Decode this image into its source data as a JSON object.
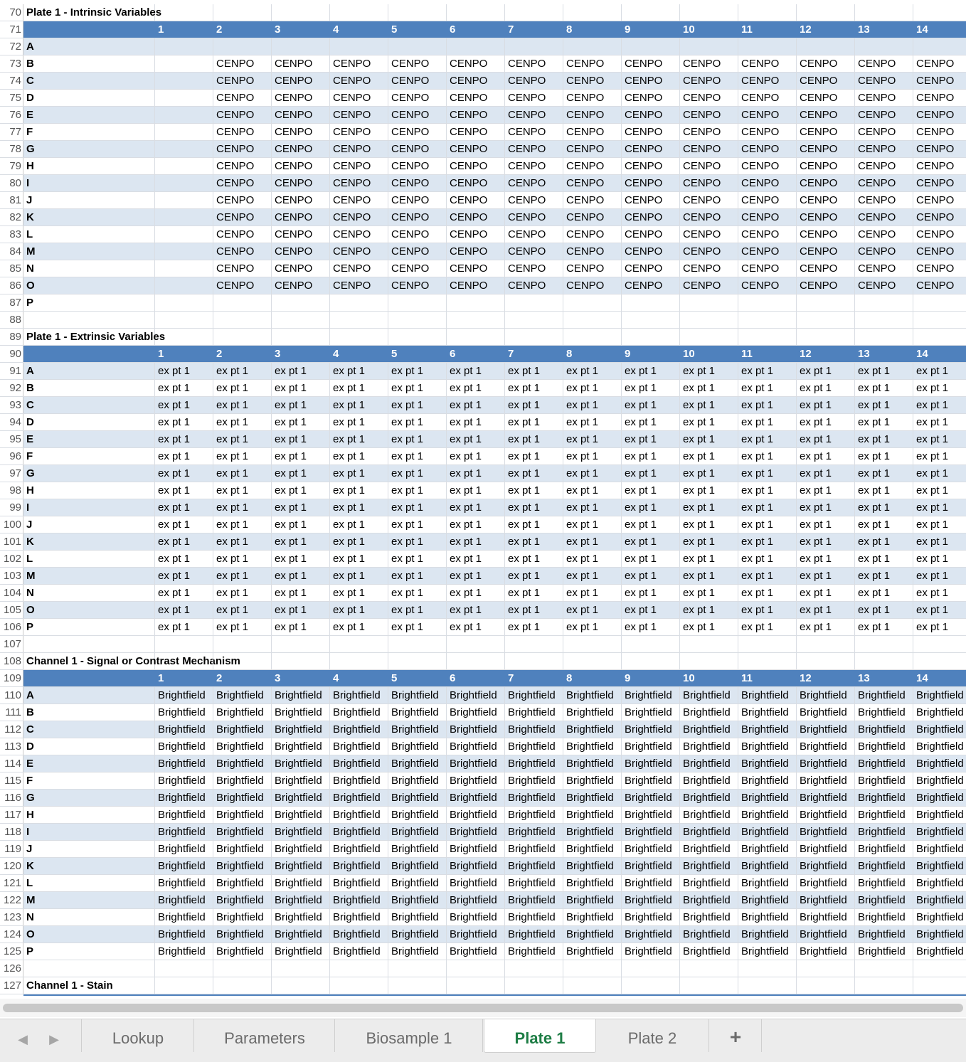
{
  "sections": [
    {
      "title_row": 70,
      "title": "Plate 1 - Intrinsic Variables",
      "header_row": 71,
      "first_data_row": 72,
      "value": "CENPO",
      "empty_rows": [
        "A",
        "P"
      ],
      "empty_first_col": true
    },
    {
      "title_row": 89,
      "title": "Plate 1 - Extrinsic Variables",
      "header_row": 90,
      "first_data_row": 91,
      "value": "ex pt 1",
      "empty_rows": [],
      "empty_first_col": false
    },
    {
      "title_row": 108,
      "title": "Channel 1 - Signal or Contrast Mechanism",
      "header_row": 109,
      "first_data_row": 110,
      "value": "Brightfield",
      "empty_rows": [],
      "empty_first_col": false
    }
  ],
  "spacer_rows": [
    88,
    107,
    126
  ],
  "last_title": {
    "row": 127,
    "title": "Channel 1 - Stain"
  },
  "column_headers": [
    "1",
    "2",
    "3",
    "4",
    "5",
    "6",
    "7",
    "8",
    "9",
    "10",
    "11",
    "12",
    "13",
    "14"
  ],
  "row_labels": [
    "A",
    "B",
    "C",
    "D",
    "E",
    "F",
    "G",
    "H",
    "I",
    "J",
    "K",
    "L",
    "M",
    "N",
    "O",
    "P"
  ],
  "colors": {
    "header": "#4f81bd",
    "band": "#dce6f1",
    "active_tab": "#1e7d45"
  },
  "tabs": [
    {
      "label": "Lookup",
      "active": false
    },
    {
      "label": "Parameters",
      "active": false
    },
    {
      "label": "Biosample 1",
      "active": false
    },
    {
      "label": "Plate 1",
      "active": true
    },
    {
      "label": "Plate 2",
      "active": false
    }
  ],
  "add_tab_label": "+"
}
